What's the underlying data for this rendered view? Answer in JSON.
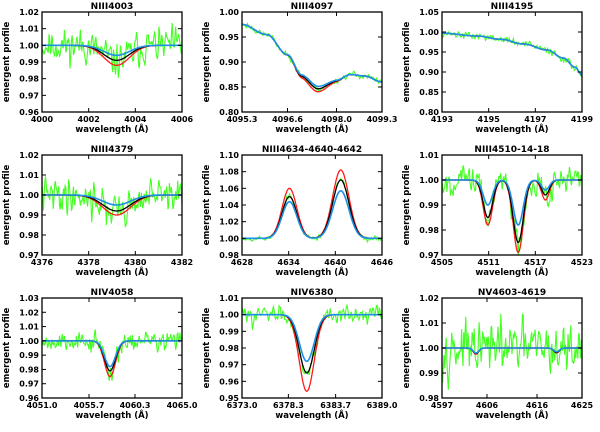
{
  "colors": {
    "observed": "#44ff22",
    "red": "#ff1a1a",
    "black": "#000000",
    "blue": "#1e8fe6",
    "axis": "#000000"
  },
  "chart_data": [
    {
      "type": "line",
      "title": "NIII4003",
      "xlabel": "wavelength (Å)",
      "ylabel": "emergent profile",
      "xlim": [
        4000,
        4006
      ],
      "ylim": [
        0.96,
        1.02
      ],
      "xticks": [
        4000,
        4002,
        4004,
        4006
      ],
      "xtick_labels": [
        "4000",
        "4002",
        "4004",
        "4006"
      ],
      "yticks": [
        0.96,
        0.97,
        0.98,
        0.99,
        1.0,
        1.01,
        1.02
      ],
      "ytick_labels": [
        "0.96",
        "0.97",
        "0.98",
        "0.99",
        "1.00",
        "1.01",
        "1.02"
      ],
      "continuum": 1.0,
      "lines": [
        {
          "center": 4003.2,
          "width": 0.55
        }
      ],
      "model_depths": {
        "red": [
          -0.012
        ],
        "black": [
          -0.009
        ],
        "blue": [
          -0.006
        ]
      },
      "noise": 0.007,
      "seed": 11
    },
    {
      "type": "line",
      "title": "NIII4097",
      "xlabel": "wavelength (Å)",
      "ylabel": "emergent profile",
      "xlim": [
        4095.3,
        4099.3
      ],
      "ylim": [
        0.8,
        1.0
      ],
      "xticks": [
        4095.3,
        4096.6,
        4098.0,
        4099.3
      ],
      "xtick_labels": [
        "4095.3",
        "4096.6",
        "4098.0",
        "4099.3"
      ],
      "yticks": [
        0.8,
        0.85,
        0.9,
        0.95,
        1.0
      ],
      "ytick_labels": [
        "0.80",
        "0.85",
        "0.90",
        "0.95",
        "1.00"
      ],
      "continuum_points": [
        [
          4095.3,
          0.975
        ],
        [
          4096.0,
          0.955
        ],
        [
          4096.6,
          0.915
        ],
        [
          4097.0,
          0.878
        ],
        [
          4097.5,
          0.858
        ],
        [
          4098.0,
          0.865
        ],
        [
          4098.4,
          0.875
        ],
        [
          4098.8,
          0.872
        ],
        [
          4099.3,
          0.86
        ]
      ],
      "lines": [
        {
          "center": 4097.4,
          "width": 0.35
        }
      ],
      "model_depths": {
        "red": [
          -0.018
        ],
        "black": [
          -0.012
        ],
        "blue": [
          -0.007
        ]
      },
      "noise": 0.004,
      "seed": 23
    },
    {
      "type": "line",
      "title": "NIII4195",
      "xlabel": "wavelength (Å)",
      "ylabel": "emergent profile",
      "xlim": [
        4193,
        4199
      ],
      "ylim": [
        0.8,
        1.05
      ],
      "xticks": [
        4193,
        4195,
        4197,
        4199
      ],
      "xtick_labels": [
        "4193",
        "4195",
        "4197",
        "4199"
      ],
      "yticks": [
        0.8,
        0.85,
        0.9,
        0.95,
        1.0,
        1.05
      ],
      "ytick_labels": [
        "0.80",
        "0.85",
        "0.90",
        "0.95",
        "1.00",
        "1.05"
      ],
      "continuum_points": [
        [
          4193.0,
          0.997
        ],
        [
          4194.5,
          0.99
        ],
        [
          4195.5,
          0.982
        ],
        [
          4196.5,
          0.97
        ],
        [
          4197.5,
          0.955
        ],
        [
          4198.2,
          0.935
        ],
        [
          4198.7,
          0.912
        ],
        [
          4199.0,
          0.893
        ]
      ],
      "lines": [],
      "model_depths": {
        "red": [],
        "black": [],
        "blue": []
      },
      "noise": 0.006,
      "seed": 37
    },
    {
      "type": "line",
      "title": "NIII4379",
      "xlabel": "wavelength (Å)",
      "ylabel": "emergent profile",
      "xlim": [
        4376,
        4382
      ],
      "ylim": [
        0.97,
        1.02
      ],
      "xticks": [
        4376,
        4378,
        4380,
        4382
      ],
      "xtick_labels": [
        "4376",
        "4378",
        "4380",
        "4382"
      ],
      "yticks": [
        0.97,
        0.98,
        0.99,
        1.0,
        1.01,
        1.02
      ],
      "ytick_labels": [
        "0.97",
        "0.98",
        "0.99",
        "1.00",
        "1.01",
        "1.02"
      ],
      "continuum": 1.0,
      "lines": [
        {
          "center": 4379.2,
          "width": 0.6
        }
      ],
      "model_depths": {
        "red": [
          -0.01
        ],
        "black": [
          -0.008
        ],
        "blue": [
          -0.005
        ]
      },
      "noise": 0.006,
      "seed": 41
    },
    {
      "type": "line",
      "title": "NIII4634-4640-4642",
      "xlabel": "wavelength (Å)",
      "ylabel": "emergent profile",
      "xlim": [
        4628,
        4646
      ],
      "ylim": [
        0.98,
        1.1
      ],
      "xticks": [
        4628,
        4634,
        4640,
        4646
      ],
      "xtick_labels": [
        "4628",
        "4634",
        "4640",
        "4646"
      ],
      "yticks": [
        0.98,
        1.0,
        1.02,
        1.04,
        1.06,
        1.08,
        1.1
      ],
      "ytick_labels": [
        "0.98",
        "1.00",
        "1.02",
        "1.04",
        "1.06",
        "1.08",
        "1.10"
      ],
      "continuum": 1.0,
      "lines": [
        {
          "center": 4634.1,
          "width": 0.95
        },
        {
          "center": 4640.7,
          "width": 1.05
        }
      ],
      "model_depths": {
        "red": [
          0.06,
          0.082
        ],
        "black": [
          0.05,
          0.07
        ],
        "blue": [
          0.044,
          0.057
        ]
      },
      "noise": 0.002,
      "seed": 53
    },
    {
      "type": "line",
      "title": "NIII4510-14-18",
      "xlabel": "wavelength (Å)",
      "ylabel": "emergent profile",
      "xlim": [
        4505,
        4523
      ],
      "ylim": [
        0.97,
        1.01
      ],
      "xticks": [
        4505,
        4511,
        4517,
        4523
      ],
      "xtick_labels": [
        "4505",
        "4511",
        "4517",
        "4523"
      ],
      "yticks": [
        0.97,
        0.98,
        0.99,
        1.0,
        1.01
      ],
      "ytick_labels": [
        "0.97",
        "0.98",
        "0.99",
        "1.00",
        "1.01"
      ],
      "continuum": 1.0,
      "lines": [
        {
          "center": 4510.9,
          "width": 0.6
        },
        {
          "center": 4514.8,
          "width": 0.65
        },
        {
          "center": 4518.3,
          "width": 0.5
        }
      ],
      "model_depths": {
        "red": [
          -0.018,
          -0.029,
          -0.008
        ],
        "black": [
          -0.015,
          -0.025,
          -0.006
        ],
        "blue": [
          -0.01,
          -0.018,
          -0.004
        ]
      },
      "noise": 0.004,
      "seed": 67
    },
    {
      "type": "line",
      "title": "NIV4058",
      "xlabel": "wavelength (Å)",
      "ylabel": "emergent profile",
      "xlim": [
        4051.0,
        4065.0
      ],
      "ylim": [
        0.96,
        1.03
      ],
      "xticks": [
        4051.0,
        4055.7,
        4060.3,
        4065.0
      ],
      "xtick_labels": [
        "4051.0",
        "4055.7",
        "4060.3",
        "4065.0"
      ],
      "yticks": [
        0.96,
        0.97,
        0.98,
        0.99,
        1.0,
        1.01,
        1.02,
        1.03
      ],
      "ytick_labels": [
        "0.96",
        "0.97",
        "0.98",
        "0.99",
        "1.00",
        "1.01",
        "1.02",
        "1.03"
      ],
      "continuum": 1.0,
      "lines": [
        {
          "center": 4057.8,
          "width": 0.55
        }
      ],
      "model_depths": {
        "red": [
          -0.025
        ],
        "black": [
          -0.021
        ],
        "blue": [
          -0.018
        ]
      },
      "noise": 0.005,
      "seed": 79
    },
    {
      "type": "line",
      "title": "NIV6380",
      "xlabel": "wavelength (Å)",
      "ylabel": "emergent profile",
      "xlim": [
        6373.0,
        6389.0
      ],
      "ylim": [
        0.95,
        1.01
      ],
      "xticks": [
        6373.0,
        6378.3,
        6383.7,
        6389.0
      ],
      "xtick_labels": [
        "6373.0",
        "6378.3",
        "6383.7",
        "6389.0"
      ],
      "yticks": [
        0.95,
        0.96,
        0.97,
        0.98,
        0.99,
        1.0,
        1.01
      ],
      "ytick_labels": [
        "0.95",
        "0.96",
        "0.97",
        "0.98",
        "0.99",
        "1.00",
        "1.01"
      ],
      "continuum": 1.0,
      "lines": [
        {
          "center": 6380.4,
          "width": 0.85
        }
      ],
      "model_depths": {
        "red": [
          -0.046
        ],
        "black": [
          -0.035
        ],
        "blue": [
          -0.028
        ]
      },
      "noise": 0.0035,
      "seed": 83
    },
    {
      "type": "line",
      "title": "NV4603-4619",
      "xlabel": "wavelength (Å)",
      "ylabel": "emergent profile",
      "xlim": [
        4597,
        4625
      ],
      "ylim": [
        0.98,
        1.02
      ],
      "xticks": [
        4597,
        4606,
        4616,
        4625
      ],
      "xtick_labels": [
        "4597",
        "4606",
        "4616",
        "4625"
      ],
      "yticks": [
        0.98,
        0.99,
        1.0,
        1.01,
        1.02
      ],
      "ytick_labels": [
        "0.98",
        "0.99",
        "1.00",
        "1.01",
        "1.02"
      ],
      "continuum": 1.0,
      "lines": [
        {
          "center": 4603.8,
          "width": 0.55
        },
        {
          "center": 4619.9,
          "width": 0.55
        }
      ],
      "model_depths": {
        "red": [
          -0.0025,
          -0.002
        ],
        "black": [
          -0.0022,
          -0.0018
        ],
        "blue": [
          -0.002,
          -0.0015
        ]
      },
      "noise": 0.007,
      "seed": 97
    }
  ]
}
